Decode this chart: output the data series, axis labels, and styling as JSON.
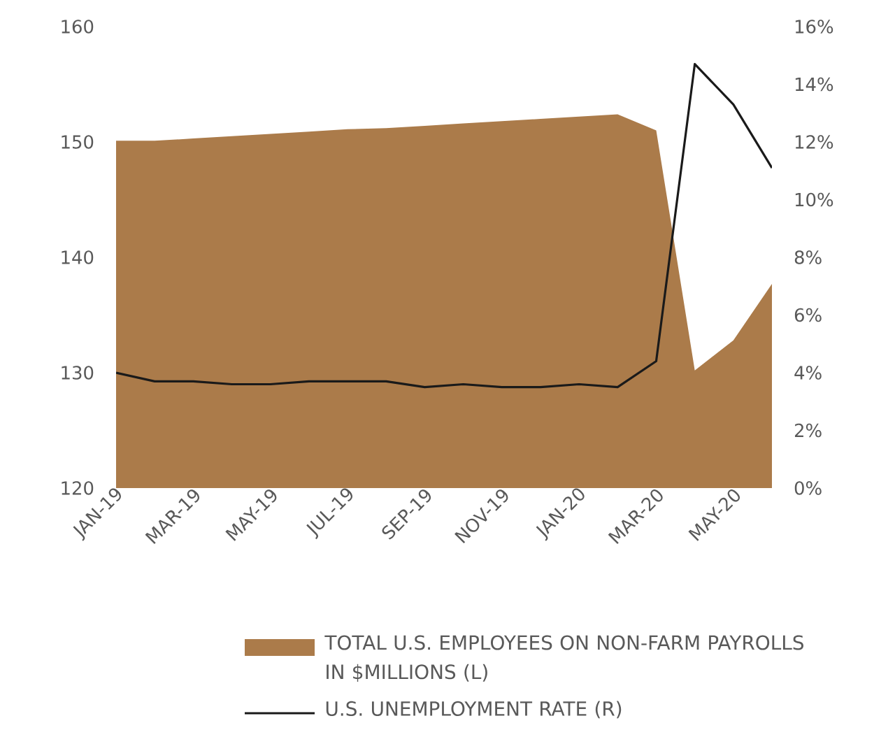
{
  "chart_data": {
    "type": "area",
    "categories": [
      "JAN-19",
      null,
      "MAR-19",
      null,
      "MAY-19",
      null,
      "JUL-19",
      null,
      "SEP-19",
      null,
      "NOV-19",
      null,
      "JAN-20",
      null,
      "MAR-20",
      null,
      "MAY-20",
      null
    ],
    "series": [
      {
        "name": "TOTAL U.S. EMPLOYEES ON NON-FARM PAYROLLS IN $MILLIONS (L)",
        "color": "#ab7b4a",
        "values": [
          150.1,
          150.1,
          150.3,
          150.5,
          150.7,
          150.9,
          151.1,
          151.2,
          151.4,
          151.6,
          151.8,
          152.0,
          152.2,
          152.4,
          151.0,
          130.2,
          132.8,
          137.7
        ]
      },
      {
        "name": "U.S. UNEMPLOYMENT RATE (R)",
        "type": "line",
        "axis": "y2",
        "color": "#1a1a1a",
        "values": [
          4.0,
          3.7,
          3.7,
          3.6,
          3.6,
          3.7,
          3.7,
          3.7,
          3.5,
          3.6,
          3.5,
          3.5,
          3.6,
          3.5,
          4.4,
          14.7,
          13.3,
          11.1
        ]
      }
    ],
    "ylim": [
      120,
      160
    ],
    "yticks": [
      120,
      130,
      140,
      150,
      160
    ],
    "y2lim": [
      0,
      16
    ],
    "y2ticks": [
      {
        "value": 0,
        "label": "0%"
      },
      {
        "value": 2,
        "label": "2%"
      },
      {
        "value": 4,
        "label": "4%"
      },
      {
        "value": 6,
        "label": "6%"
      },
      {
        "value": 8,
        "label": "8%"
      },
      {
        "value": 10,
        "label": "10%"
      },
      {
        "value": 12,
        "label": "12%"
      },
      {
        "value": 14,
        "label": "14%"
      },
      {
        "value": 16,
        "label": "16%"
      }
    ],
    "grid": false,
    "legend": "bottom"
  }
}
